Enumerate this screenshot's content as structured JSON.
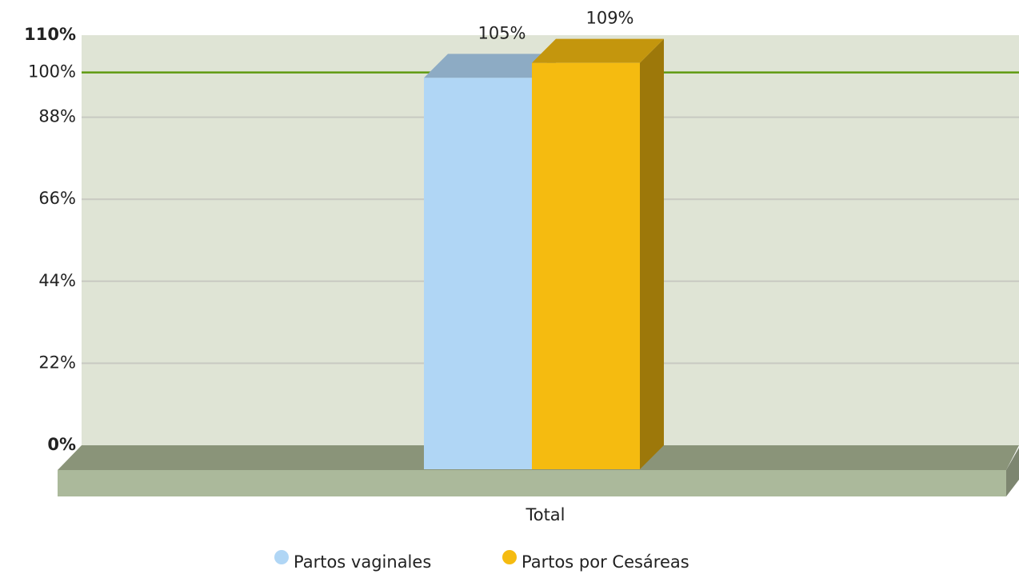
{
  "chart_data": {
    "type": "bar3d",
    "categories": [
      "Total"
    ],
    "series": [
      {
        "name": "Partos vaginales",
        "color": "#b0d6f5",
        "values": [
          105
        ],
        "value_labels": [
          "105%"
        ]
      },
      {
        "name": "Partos por Cesáreas",
        "color": "#f5bb10",
        "values": [
          109
        ],
        "value_labels": [
          "109%"
        ]
      }
    ],
    "ylim": [
      0,
      110
    ],
    "yticks": [
      {
        "value": 0,
        "label": "0%"
      },
      {
        "value": 22,
        "label": "22%"
      },
      {
        "value": 44,
        "label": "44%"
      },
      {
        "value": 66,
        "label": "66%"
      },
      {
        "value": 88,
        "label": "88%"
      },
      {
        "value": 110,
        "label": "110%"
      }
    ],
    "target_line": {
      "value": 100,
      "label": "100%",
      "color": "#5f9a10"
    },
    "grid": true,
    "legend": "bottom"
  }
}
